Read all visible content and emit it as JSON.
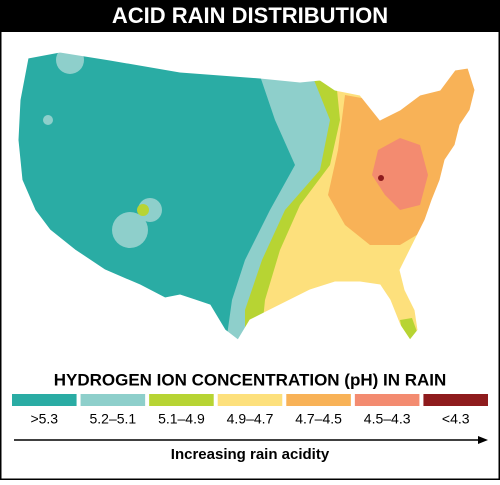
{
  "header": {
    "title": "ACID RAIN DISTRIBUTION"
  },
  "legend": {
    "title": "HYDROGEN ION CONCENTRATION (pH) IN RAIN",
    "items": [
      {
        "label": ">5.3",
        "color": "#2aaca4"
      },
      {
        "label": "5.2–5.1",
        "color": "#8ecfcb"
      },
      {
        "label": "5.1–4.9",
        "color": "#b7d433"
      },
      {
        "label": "4.9–4.7",
        "color": "#fde07c"
      },
      {
        "label": "4.7–4.5",
        "color": "#f8b257"
      },
      {
        "label": "4.5–4.3",
        "color": "#f38b70"
      },
      {
        "label": "<4.3",
        "color": "#8e1b1d"
      }
    ]
  },
  "caption": "Increasing rain acidity"
}
